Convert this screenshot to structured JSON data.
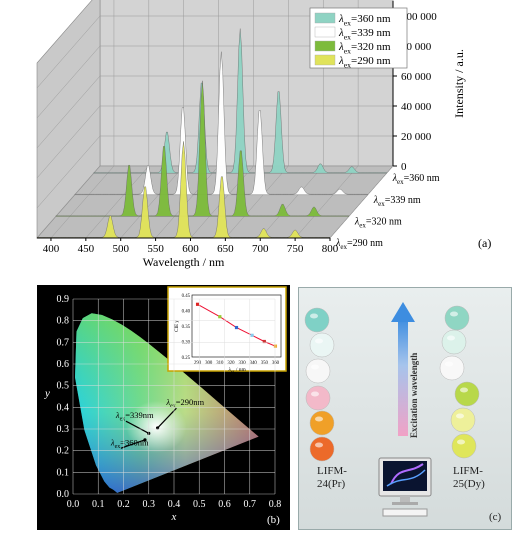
{
  "panel_labels": {
    "a": "(a)",
    "b": "(b)",
    "c": "(c)"
  },
  "colors": {
    "s360": "#8fd3c3",
    "s339": "#ffffff",
    "s320": "#7dbb3c",
    "s290": "#e0e35a",
    "wall": "#d3d3d3"
  },
  "chart_data": [
    {
      "type": "line",
      "title": "",
      "xlabel": "Wavelength / nm",
      "ylabel": "Intensity / a.u.",
      "x_ticks": [
        "400",
        "450",
        "500",
        "550",
        "600",
        "650",
        "700",
        "750",
        "800"
      ],
      "y_ticks": [
        "0",
        "20 000",
        "40 000",
        "60 000",
        "80 000",
        "100 000"
      ],
      "xlim": [
        380,
        800
      ],
      "ylim": [
        0,
        110000
      ],
      "depth_labels": [
        {
          "pre": "λ",
          "sub": "ex",
          "post": "=360 nm"
        },
        {
          "pre": "λ",
          "sub": "ex",
          "post": "=339 nm"
        },
        {
          "pre": "λ",
          "sub": "ex",
          "post": "=320 nm"
        },
        {
          "pre": "λ",
          "sub": "ex",
          "post": "=290 nm"
        }
      ],
      "legend": [
        {
          "pre": "λ",
          "sub": "ex",
          "post": "=360 nm",
          "color": "#8fd3c3"
        },
        {
          "pre": "λ",
          "sub": "ex",
          "post": "=339 nm",
          "color": "#ffffff"
        },
        {
          "pre": "λ",
          "sub": "ex",
          "post": "=320 nm",
          "color": "#7dbb3c"
        },
        {
          "pre": "λ",
          "sub": "ex",
          "post": "=290 nm",
          "color": "#e0e35a"
        }
      ],
      "series": [
        {
          "name": "λex=360 nm",
          "color": "#8fd3c3",
          "peaks": [
            [
              485,
              28000
            ],
            [
              535,
              62000
            ],
            [
              590,
              96000
            ],
            [
              645,
              56000
            ],
            [
              705,
              6000
            ],
            [
              750,
              4000
            ]
          ]
        },
        {
          "name": "λex=339 nm",
          "color": "#ffffff",
          "peaks": [
            [
              485,
              20000
            ],
            [
              535,
              60000
            ],
            [
              590,
              95000
            ],
            [
              645,
              58000
            ],
            [
              705,
              5000
            ],
            [
              760,
              3500
            ]
          ]
        },
        {
          "name": "λex=320 nm",
          "color": "#7dbb3c",
          "peaks": [
            [
              485,
              35000
            ],
            [
              535,
              48000
            ],
            [
              590,
              90000
            ],
            [
              645,
              45000
            ],
            [
              705,
              8000
            ],
            [
              750,
              6000
            ]
          ]
        },
        {
          "name": "λex=290 nm",
          "color": "#e0e35a",
          "peaks": [
            [
              485,
              15000
            ],
            [
              535,
              35000
            ],
            [
              590,
              64000
            ],
            [
              645,
              42000
            ],
            [
              705,
              6000
            ],
            [
              750,
              5000
            ]
          ]
        }
      ]
    },
    {
      "type": "scatter",
      "title": "",
      "xlabel": "x",
      "ylabel": "y",
      "x_ticks": [
        "0.0",
        "0.1",
        "0.2",
        "0.3",
        "0.4",
        "0.5",
        "0.6",
        "0.7",
        "0.8"
      ],
      "y_ticks": [
        "0.0",
        "0.1",
        "0.2",
        "0.3",
        "0.4",
        "0.5",
        "0.6",
        "0.7",
        "0.8",
        "0.9"
      ],
      "xlim": [
        0,
        0.8
      ],
      "ylim": [
        0,
        0.9
      ],
      "annotations": [
        {
          "pre": "λ",
          "sub": "ex",
          "post": "=290nm",
          "x": 0.335,
          "y": 0.305,
          "lx": 0.37,
          "ly": 0.41
        },
        {
          "pre": "λ",
          "sub": "ex",
          "post": "=339nm",
          "x": 0.3,
          "y": 0.28,
          "lx": 0.17,
          "ly": 0.35
        },
        {
          "pre": "λ",
          "sub": "ex",
          "post": "=360nm",
          "x": 0.285,
          "y": 0.25,
          "lx": 0.15,
          "ly": 0.225
        }
      ],
      "inset": {
        "type": "line",
        "xlabel_pre": "λ",
        "xlabel_sub": "ex",
        "xlabel_post": " / nm",
        "ylabel": "CIE y",
        "x_ticks": [
          "290",
          "300",
          "310",
          "320",
          "330",
          "340",
          "350",
          "360"
        ],
        "y_ticks": [
          "0.25",
          "0.30",
          "0.35",
          "0.40",
          "0.45"
        ],
        "xlim": [
          285,
          365
        ],
        "ylim": [
          0.25,
          0.45
        ],
        "x": [
          290,
          310,
          325,
          339,
          350,
          360
        ],
        "y": [
          0.42,
          0.38,
          0.345,
          0.32,
          0.3,
          0.285
        ],
        "point_colors": [
          "#d22",
          "#9c3",
          "#36c",
          "#8ce",
          "#c33",
          "#ea3"
        ]
      }
    }
  ],
  "panel_c": {
    "left_label": "LIFM-\n24(Pr)",
    "right_label": "LIFM-\n25(Dy)",
    "arrow_label": "Excitation wavelength",
    "left_balls": [
      "#7fd1c6",
      "#eaf6f4",
      "#f7f7f7",
      "#f3b9c9",
      "#f0a028",
      "#ec6a2a"
    ],
    "right_balls": [
      "#8fd6c3",
      "#dcf2ea",
      "#f8f8f8",
      "#b8d84a",
      "#eef09a",
      "#dfe65a"
    ]
  }
}
